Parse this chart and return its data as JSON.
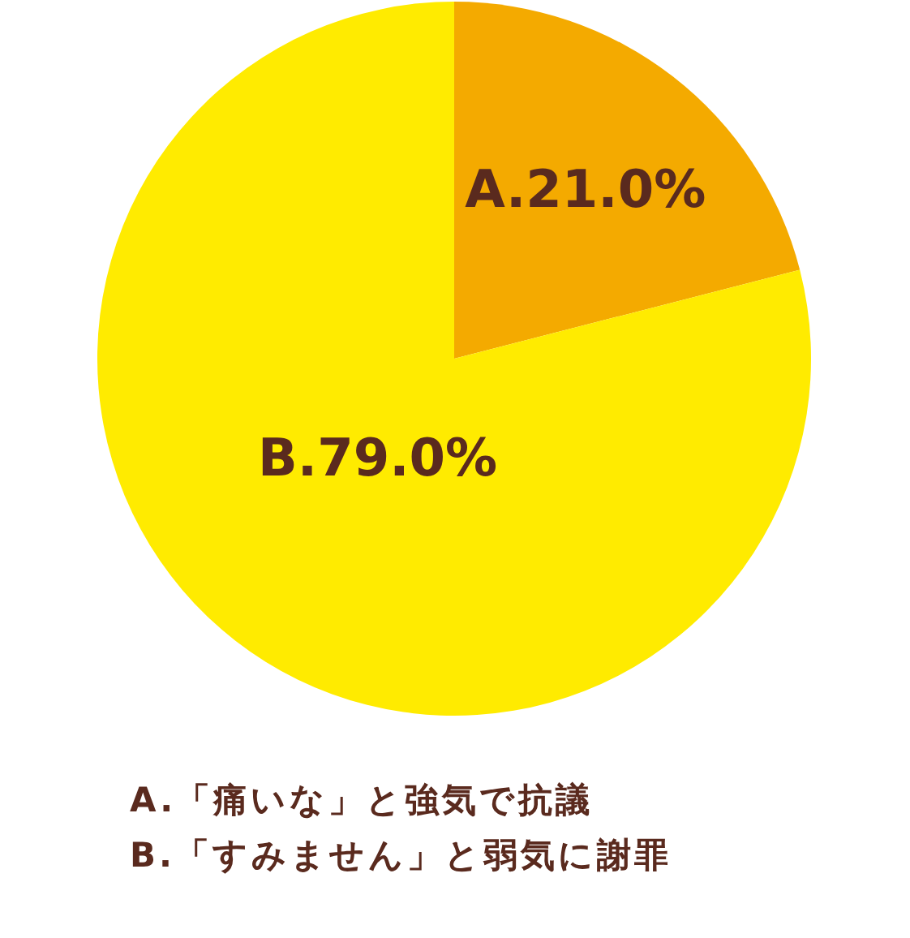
{
  "chart_data": {
    "type": "pie",
    "categories": [
      "A.",
      "B."
    ],
    "values": [
      21.0,
      79.0
    ],
    "colors": [
      "#f4aa00",
      "#ffeb00"
    ],
    "value_labels": [
      "21.0%",
      "79.0%"
    ],
    "annotations": [
      "A.「痛いな」と強気で抗議",
      "B.「すみません」と弱気に謝罪"
    ]
  }
}
